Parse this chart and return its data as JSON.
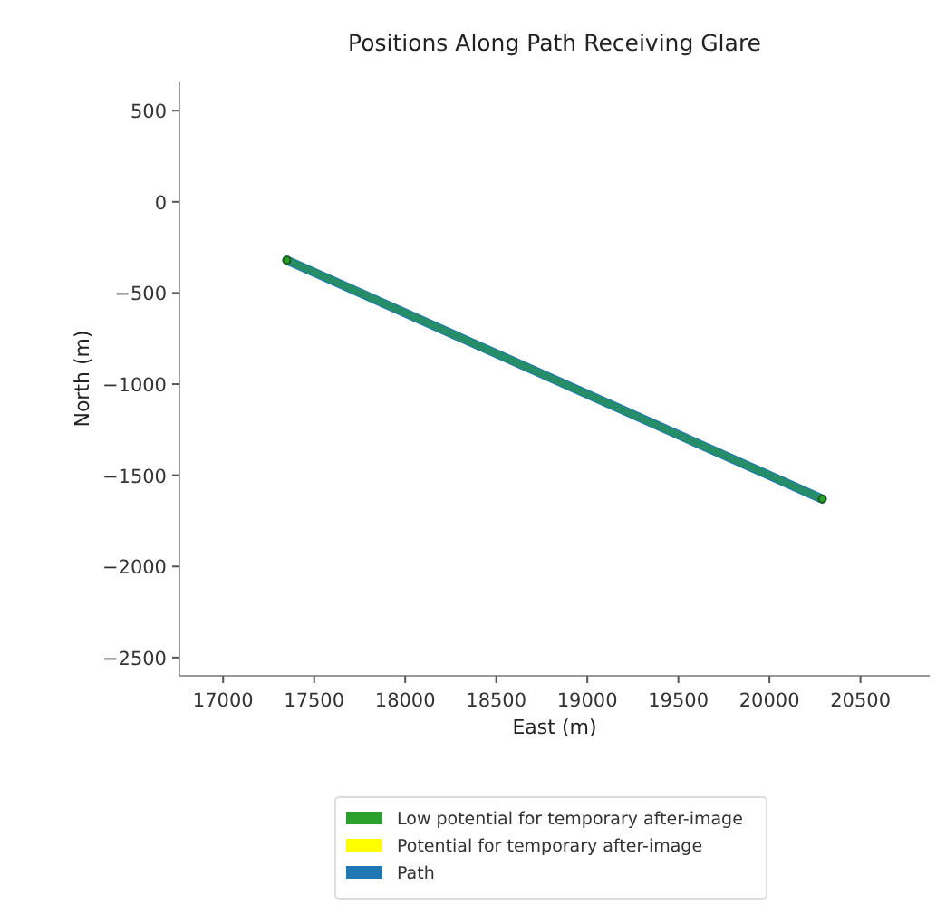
{
  "chart_data": {
    "type": "line",
    "title": "Positions Along Path Receiving Glare",
    "xlabel": "East (m)",
    "ylabel": "North (m)",
    "xlim": [
      16760,
      20880
    ],
    "xticks": [
      17000,
      17500,
      18000,
      18500,
      19000,
      19500,
      20000,
      20500
    ],
    "ylim": [
      -2600,
      660
    ],
    "yticks": [
      500,
      0,
      -500,
      -1000,
      -1500,
      -2000,
      -2500
    ],
    "grid": false,
    "legend": "bottom",
    "line_style": "solid",
    "x": [
      17350,
      20290
    ],
    "series": [
      {
        "name": "Low potential for temporary after-image",
        "color": "#2ca02c",
        "values": [
          -320,
          -1630
        ],
        "marker": "circle"
      },
      {
        "name": "Potential for temporary after-image",
        "color": "#ffff00",
        "values": [
          null,
          null
        ]
      },
      {
        "name": "Path",
        "color": "#1f77b4",
        "values": [
          -320,
          -1630
        ]
      }
    ]
  }
}
